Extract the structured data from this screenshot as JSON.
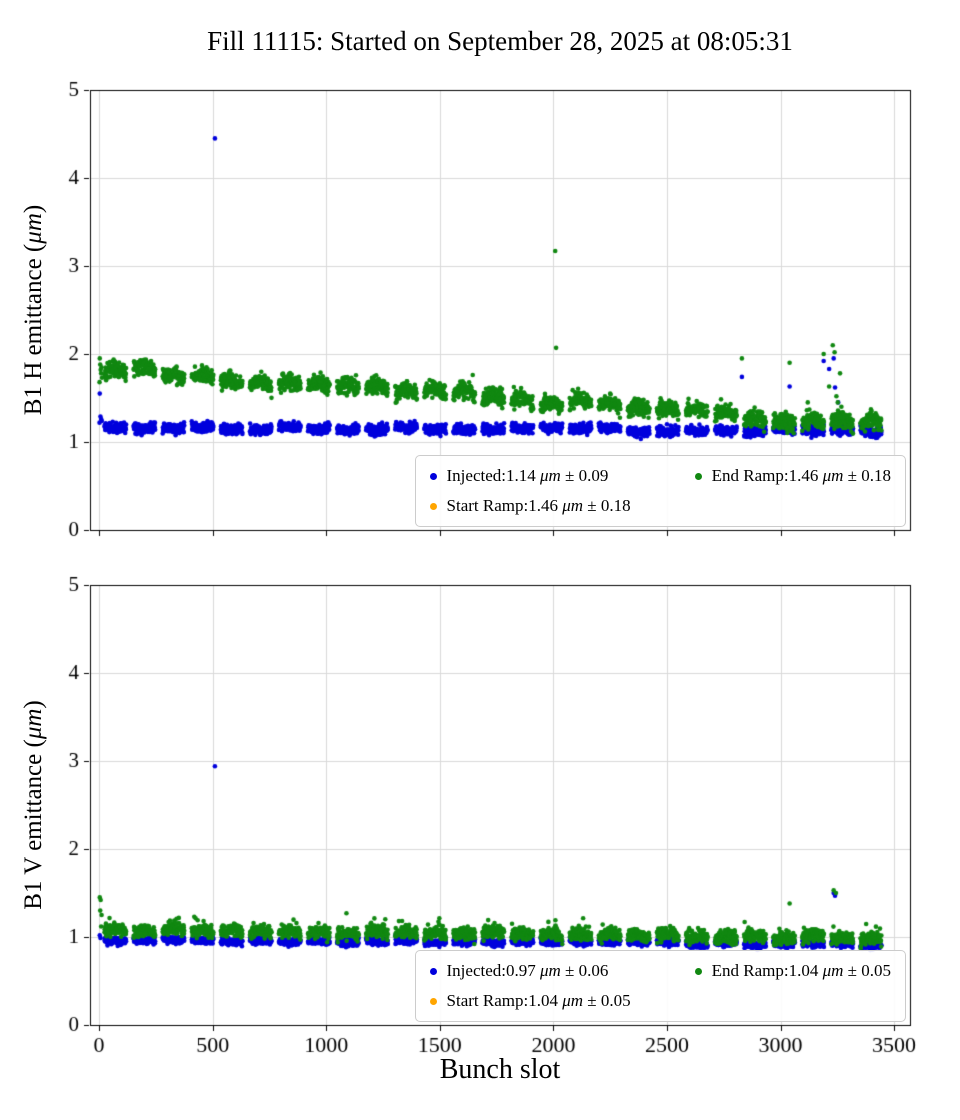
{
  "chart_data": {
    "type": "scatter",
    "title": "Fill 11115: Started on September 28, 2025 at 08:05:31",
    "xlabel": "Bunch slot",
    "grid": true,
    "grid_color": "#d9d9d9",
    "charts": [
      {
        "id": "B1H",
        "ylabel": "B1 H emittance (μm)",
        "ylabel_pre": "B1 H emittance (",
        "ylabel_unit": "μm",
        "ylabel_post": ")",
        "xlim": [
          -40,
          3570
        ],
        "ylim": [
          0,
          5
        ],
        "xticks": [
          0,
          500,
          1000,
          1500,
          2000,
          2500,
          3000,
          3500
        ],
        "yticks": [
          0,
          1,
          2,
          3,
          4,
          5
        ],
        "show_xtick_labels": false,
        "legend": [
          {
            "pre": "Injected:1.14 ",
            "unit": "μm",
            "post": " ± 0.09",
            "mean": 1.14,
            "std": 0.09
          },
          {
            "pre": "Start Ramp:1.46 ",
            "unit": "μm",
            "post": " ± 0.18",
            "mean": 1.46,
            "std": 0.18
          },
          {
            "pre": "End Ramp:1.46 ",
            "unit": "μm",
            "post": " ± 0.18",
            "mean": 1.46,
            "std": 0.18
          }
        ],
        "series": [
          {
            "name": "Injected",
            "color": "#0000dd",
            "gen": {
              "seed": 11,
              "x0": 24,
              "x1": 3444,
              "train": 96,
              "gap": 32,
              "y0": 1.17,
              "y1": 1.14,
              "noise": 0.028,
              "arch": -0.015,
              "jitter": 0.012
            },
            "points": [
              [
                2,
                1.22
              ],
              [
                3,
                1.55
              ],
              [
                6,
                1.29
              ],
              [
                9,
                1.26
              ],
              [
                12,
                1.24
              ],
              [
                510,
                4.45
              ],
              [
                2830,
                1.74
              ],
              [
                3040,
                1.63
              ],
              [
                3190,
                1.92
              ],
              [
                3214,
                1.83
              ],
              [
                3234,
                1.95
              ],
              [
                3240,
                1.62
              ],
              [
                3254,
                1.45
              ]
            ]
          },
          {
            "name": "Start Ramp",
            "color": "#ffa500"
          },
          {
            "name": "End Ramp",
            "color": "#118811",
            "gen": {
              "seed": 7,
              "x0": 24,
              "x1": 3444,
              "train": 96,
              "gap": 32,
              "y0": 1.79,
              "y1": 1.17,
              "noise": 0.045,
              "arch": 0.05,
              "jitter": 0.025,
              "spike_p": 0.02,
              "spike_a": 0.12
            },
            "points": [
              [
                2,
                1.68
              ],
              [
                3,
                1.95
              ],
              [
                5,
                1.88
              ],
              [
                7,
                1.82
              ],
              [
                9,
                1.78
              ],
              [
                11,
                1.85
              ],
              [
                13,
                1.73
              ],
              [
                2008,
                3.17
              ],
              [
                2012,
                2.07
              ],
              [
                2830,
                1.95
              ],
              [
                3040,
                1.9
              ],
              [
                3120,
                1.45
              ],
              [
                3190,
                2.0
              ],
              [
                3214,
                1.63
              ],
              [
                3230,
                2.1
              ],
              [
                3238,
                2.02
              ],
              [
                3246,
                1.52
              ],
              [
                3252,
                1.45
              ],
              [
                3262,
                1.78
              ],
              [
                3268,
                1.4
              ]
            ]
          }
        ]
      },
      {
        "id": "B1V",
        "ylabel": "B1 V emittance (μm)",
        "ylabel_pre": "B1 V emittance (",
        "ylabel_unit": "μm",
        "ylabel_post": ")",
        "xlim": [
          -40,
          3570
        ],
        "ylim": [
          0,
          5
        ],
        "xticks": [
          0,
          500,
          1000,
          1500,
          2000,
          2500,
          3000,
          3500
        ],
        "yticks": [
          0,
          1,
          2,
          3,
          4,
          5
        ],
        "show_xtick_labels": true,
        "legend": [
          {
            "pre": "Injected:0.97 ",
            "unit": "μm",
            "post": " ± 0.06",
            "mean": 0.97,
            "std": 0.06
          },
          {
            "pre": "Start Ramp:1.04 ",
            "unit": "μm",
            "post": " ± 0.05",
            "mean": 1.04,
            "std": 0.05
          },
          {
            "pre": "End Ramp:1.04 ",
            "unit": "μm",
            "post": " ± 0.05",
            "mean": 1.04,
            "std": 0.05
          }
        ],
        "series": [
          {
            "name": "Injected",
            "color": "#0000dd",
            "gen": {
              "seed": 21,
              "x0": 24,
              "x1": 3444,
              "train": 96,
              "gap": 32,
              "y0": 0.97,
              "y1": 0.92,
              "noise": 0.02,
              "arch": -0.01,
              "jitter": 0.008
            },
            "points": [
              [
                3,
                1.02
              ],
              [
                6,
                0.99
              ],
              [
                510,
                2.94
              ],
              [
                3234,
                1.5
              ],
              [
                3240,
                1.47
              ]
            ]
          },
          {
            "name": "Start Ramp",
            "color": "#ffa500"
          },
          {
            "name": "End Ramp",
            "color": "#118811",
            "gen": {
              "seed": 31,
              "x0": 24,
              "x1": 3444,
              "train": 96,
              "gap": 32,
              "y0": 1.06,
              "y1": 0.98,
              "noise": 0.035,
              "arch": 0.03,
              "jitter": 0.015,
              "spike_p": 0.03,
              "spike_a": 0.15
            },
            "points": [
              [
                3,
                1.45
              ],
              [
                5,
                1.3
              ],
              [
                7,
                1.42
              ],
              [
                9,
                1.12
              ],
              [
                11,
                1.25
              ],
              [
                3040,
                1.38
              ],
              [
                3234,
                1.53
              ],
              [
                3244,
                1.5
              ]
            ]
          }
        ]
      }
    ]
  }
}
